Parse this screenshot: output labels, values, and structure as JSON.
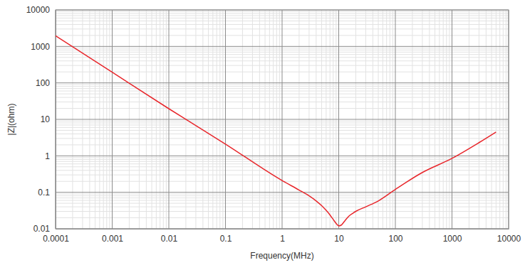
{
  "chart_data": {
    "type": "line",
    "x_label": "Frequency(MHz)",
    "y_label": "|Z|(ohm)",
    "log": true,
    "grid": true,
    "xlim": [
      0.0001,
      10000
    ],
    "ylim": [
      0.01,
      10000
    ],
    "xticks": [
      0.0001,
      0.001,
      0.01,
      0.1,
      1,
      10,
      100,
      1000,
      10000
    ],
    "yticks": [
      0.01,
      0.1,
      1,
      10,
      100,
      1000,
      10000
    ],
    "series": [
      {
        "name": "|Z|",
        "color": "#e8262b",
        "x": [
          0.0001,
          0.001,
          0.01,
          0.1,
          1,
          2,
          3,
          4,
          5,
          6,
          7,
          8,
          9,
          10,
          11,
          12,
          13,
          15,
          18,
          20,
          30,
          50,
          100,
          300,
          1000,
          3000,
          6000
        ],
        "values": [
          1960,
          196,
          19.6,
          2.1,
          0.21,
          0.115,
          0.08,
          0.058,
          0.043,
          0.032,
          0.024,
          0.018,
          0.014,
          0.012,
          0.0125,
          0.0145,
          0.017,
          0.022,
          0.027,
          0.03,
          0.04,
          0.058,
          0.12,
          0.35,
          0.85,
          2.3,
          4.5
        ]
      }
    ]
  }
}
